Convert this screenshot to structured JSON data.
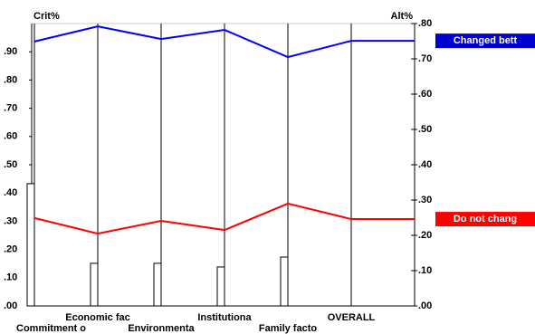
{
  "chart_data": {
    "type": "bar_line",
    "y_label": "Crit%",
    "y2_label": "Alt%",
    "categories": [
      "Commitment o",
      "Economic fac",
      "Environmenta",
      "Institutiona",
      "Family facto",
      "OVERALL"
    ],
    "values": [
      0.433,
      0.151,
      0.151,
      0.138,
      0.173,
      null
    ],
    "bar_color": "#ffffff",
    "series": [
      {
        "name": "Changed bett",
        "color": "#0000ff",
        "axis": "y2",
        "values": [
          0.749,
          0.792,
          0.756,
          0.782,
          0.705,
          0.751
        ]
      },
      {
        "name": "Do not chang",
        "color": "#ff0000",
        "axis": "y2",
        "values": [
          0.249,
          0.205,
          0.241,
          0.215,
          0.29,
          0.246
        ]
      }
    ],
    "ylim": [
      0,
      1
    ],
    "yticks": [
      {
        "value": 0,
        "label": ".00"
      },
      {
        "value": 0.1,
        "label": ".10"
      },
      {
        "value": 0.2,
        "label": ".20"
      },
      {
        "value": 0.3,
        "label": ".30"
      },
      {
        "value": 0.4,
        "label": ".40"
      },
      {
        "value": 0.5,
        "label": ".50"
      },
      {
        "value": 0.6,
        "label": ".60"
      },
      {
        "value": 0.7,
        "label": ".70"
      },
      {
        "value": 0.8,
        "label": ".80"
      },
      {
        "value": 0.9,
        "label": ".90"
      }
    ],
    "y2lim": [
      0,
      0.8
    ],
    "y2ticks": [
      {
        "value": 0,
        "label": ".00"
      },
      {
        "value": 0.1,
        "label": ".10"
      },
      {
        "value": 0.2,
        "label": ".20"
      },
      {
        "value": 0.3,
        "label": ".30"
      },
      {
        "value": 0.4,
        "label": ".40"
      },
      {
        "value": 0.5,
        "label": ".50"
      },
      {
        "value": 0.6,
        "label": ".60"
      },
      {
        "value": 0.7,
        "label": ".70"
      },
      {
        "value": 0.8,
        "label": ".80"
      }
    ]
  }
}
